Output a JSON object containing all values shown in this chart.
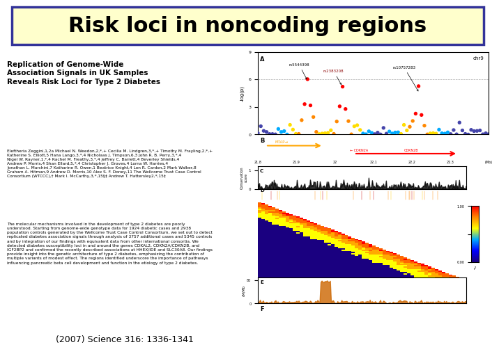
{
  "title": "Risk loci in noncoding regions",
  "title_bg": "#ffffcc",
  "title_border": "#333399",
  "title_fontsize": 22,
  "background_color": "#ffffff",
  "paper_title": "Replication of Genome-Wide\nAssociation Signals in UK Samples\nReveals Risk Loci for Type 2 Diabetes",
  "paper_authors": "Eleftheria Zeggini,1,2a Michael N. Weedon,2,*,+ Cecilia M. Lindgren,3,*,+ Timothy M. Frayling,2,*,+\nKatherine S. Elliott,5 Hana Lango,3,*,4 Nicholaas J. Timpson,6,3 John R. B. Perry,3,*,4\nNigel W. Rayner,1,*,4 Rachel M. Freathy,3,*,4 Jeffrey C. Barrett,4 Beverley Shields,4\nAndrew P. Morris,4 Shan Ellard,5,*,4 Christopher J. Groves,4 Lorna W. Harries,4\nJonathan L. Marchini,7 Katharine R. Owen,1 Beatrice Knight,4 Lon R. Cardon,2 Mark Walker,8\nGraham A. Hitman,9 Andrew D. Morris,10 Alex S. F. Doney,11 The Wellcome Trust Case Control\nConsortium (WTCCC),† Mark I. McCarthy,3,*,15§‡ Andrew T. Hattersley2,*,15‡",
  "paper_abstract": "The molecular mechanisms involved in the development of type 2 diabetes are poorly\nunderstood. Starting from genome-wide genotype data for 1924 diabetic cases and 2938\npopulation controls generated by the Wellcome Trust Case Control Consortium, we set out to detect\nreplicated diabetes association signals through analysis of 3757 additional cases and 5345 controls\nand by integration of our findings with equivalent data from other international consortia. We\ndetected diabetes susceptibility loci in and around the genes CDKAL2, CDKN2A/CDKN2B, and\nIGF2BP2 and confirmed the recently described associations at HHEX/IDE and SLC30A8. Our findings\nprovide insight into the genetic architecture of type 2 diabetes, emphasizing the contribution of\nmultiple variants of modest effect. The regions identified underscore the importance of pathways\ninfluencing pancreatic beta cell development and function in the etiology of type 2 diabetes.",
  "citation": "(2007) Science 316: 1336-1341"
}
